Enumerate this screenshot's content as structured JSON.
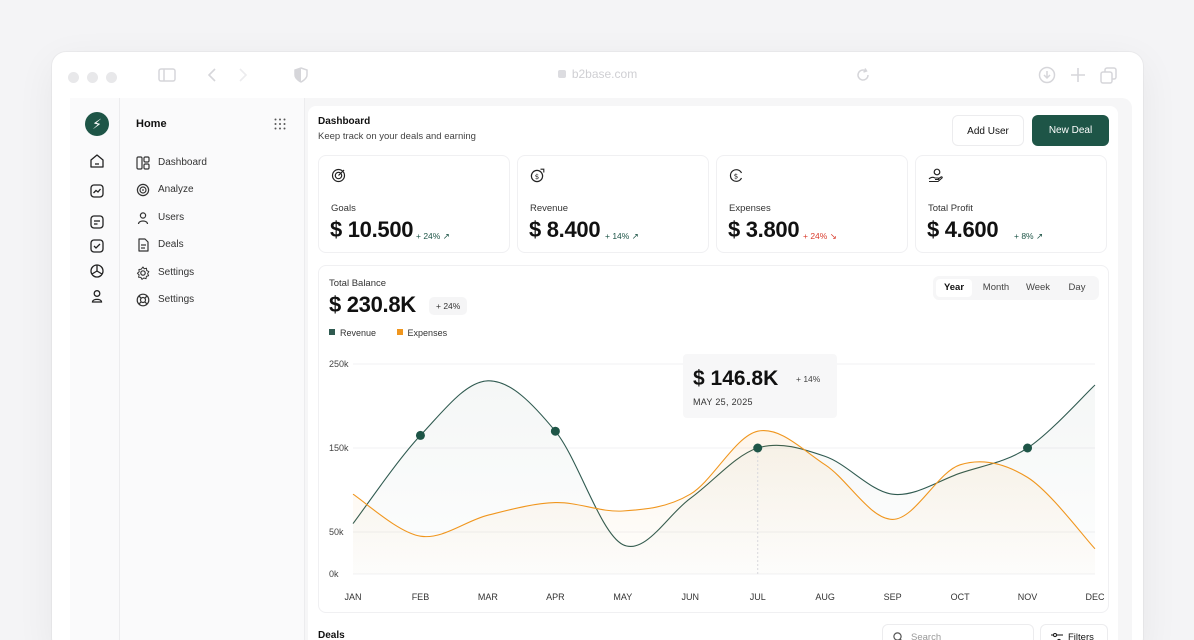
{
  "browser": {
    "url": "b2base.com"
  },
  "nav": {
    "title": "Home",
    "items": [
      {
        "label": "Dashboard",
        "icon": "layout-icon"
      },
      {
        "label": "Analyze",
        "icon": "target-icon"
      },
      {
        "label": "Users",
        "icon": "user-icon"
      },
      {
        "label": "Deals",
        "icon": "file-icon"
      },
      {
        "label": "Settings",
        "icon": "gear-icon"
      },
      {
        "label": "Settings",
        "icon": "lifebuoy-icon"
      }
    ]
  },
  "header": {
    "title": "Dashboard",
    "subtitle": "Keep track on your deals and earning",
    "add_user": "Add User",
    "new_deal": "New Deal"
  },
  "cards": [
    {
      "label": "Goals",
      "value": "$ 10.500",
      "change": "+ 24% ↗",
      "trend": "up",
      "icon": "target-icon"
    },
    {
      "label": "Revenue",
      "value": "$ 8.400",
      "change": "+ 14% ↗",
      "trend": "up",
      "icon": "dollar-arrow-icon"
    },
    {
      "label": "Expenses",
      "value": "$ 3.800",
      "change": "+ 24% ↘",
      "trend": "down",
      "icon": "dollar-flow-icon"
    },
    {
      "label": "Total Profit",
      "value": "$ 4.600",
      "change": "+ 8% ↗",
      "trend": "up",
      "icon": "hand-coin-icon"
    }
  ],
  "balance": {
    "label": "Total Balance",
    "value": "$ 230.8K",
    "change": "+ 24%",
    "tabs": [
      "Year",
      "Month",
      "Week",
      "Day"
    ],
    "active_tab": "Year"
  },
  "tooltip": {
    "value": "$ 146.8K",
    "change": "+ 14%",
    "date": "MAY 25, 2025"
  },
  "colors": {
    "accent": "#1e5547",
    "revenue": "#2f5a50",
    "expenses": "#f0961e",
    "negative": "#d93d2e"
  },
  "chart_data": {
    "type": "line",
    "categories": [
      "JAN",
      "FEB",
      "MAR",
      "APR",
      "MAY",
      "JUN",
      "JUL",
      "AUG",
      "SEP",
      "OCT",
      "NOV",
      "DEC"
    ],
    "y_ticks": [
      "250k",
      "150k",
      "50k",
      "0k"
    ],
    "ylim": [
      0,
      250000
    ],
    "series": [
      {
        "name": "Revenue",
        "values": [
          60000,
          165000,
          230000,
          170000,
          35000,
          90000,
          150000,
          140000,
          95000,
          120000,
          150000,
          225000
        ]
      },
      {
        "name": "Expenses",
        "values": [
          95000,
          45000,
          70000,
          85000,
          75000,
          95000,
          170000,
          130000,
          65000,
          130000,
          115000,
          30000
        ]
      }
    ],
    "markers": [
      {
        "series": "Revenue",
        "month": "FEB",
        "value": 165000
      },
      {
        "series": "Revenue",
        "month": "APR",
        "value": 170000
      },
      {
        "series": "Revenue",
        "month": "JUL",
        "value": 150000
      },
      {
        "series": "Revenue",
        "month": "NOV",
        "value": 150000
      }
    ],
    "grid": true,
    "legend": "top-left"
  },
  "table": {
    "title": "Deals",
    "search_placeholder": "Search",
    "filters": "Filters"
  }
}
